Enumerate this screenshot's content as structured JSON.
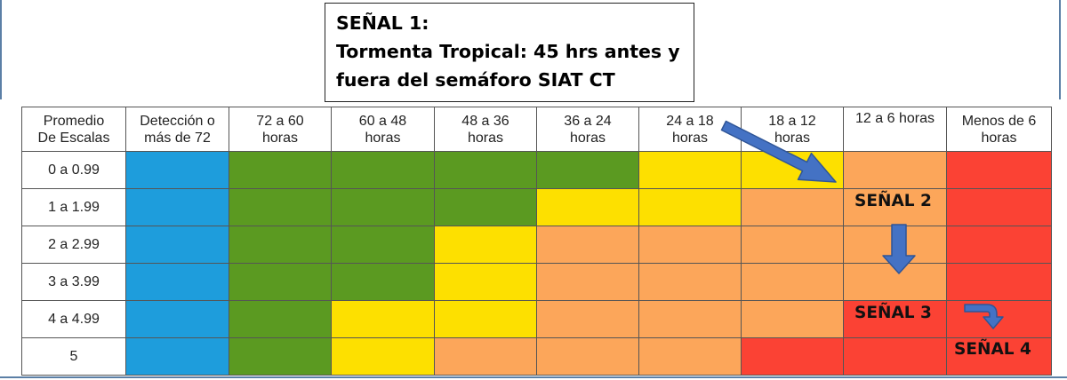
{
  "title": {
    "lines": [
      "SEÑAL 1:",
      "Tormenta Tropical: 45 hrs antes y",
      "fuera del semáforo SIAT CT"
    ]
  },
  "table": {
    "corner_header": [
      "Promedio",
      "De Escalas"
    ],
    "column_headers": [
      [
        "Detección o",
        "más de 72"
      ],
      [
        "72 a 60",
        "horas"
      ],
      [
        "60 a 48",
        "horas"
      ],
      [
        "48 a 36",
        "horas"
      ],
      [
        "36 a 24",
        "horas"
      ],
      [
        "24 a 18",
        "horas"
      ],
      [
        "18 a 12",
        "horas"
      ],
      [
        "12 a 6 horas",
        ""
      ],
      [
        "Menos de 6",
        "horas"
      ]
    ],
    "row_labels": [
      "0 a 0.99",
      "1 a 1.99",
      "2 a 2.99",
      "3 a 3.99",
      "4 a 4.99",
      "5"
    ],
    "level_colors": {
      "blue": "#1e9ddc",
      "green": "#5b9a21",
      "yellow": "#fde000",
      "lightorange": "#fca65a",
      "orange": "#fca65a",
      "red": "#fb4234"
    },
    "cells": [
      [
        "blue",
        "green",
        "green",
        "green",
        "green",
        "yellow",
        "yellow",
        "orange",
        "red"
      ],
      [
        "blue",
        "green",
        "green",
        "green",
        "yellow",
        "yellow",
        "lightorange",
        "orange",
        "red"
      ],
      [
        "blue",
        "green",
        "green",
        "yellow",
        "lightorange",
        "lightorange",
        "lightorange",
        "orange",
        "red"
      ],
      [
        "blue",
        "green",
        "green",
        "yellow",
        "lightorange",
        "lightorange",
        "lightorange",
        "orange",
        "red"
      ],
      [
        "blue",
        "green",
        "yellow",
        "yellow",
        "lightorange",
        "lightorange",
        "lightorange",
        "red",
        "red"
      ],
      [
        "blue",
        "green",
        "yellow",
        "lightorange",
        "lightorange",
        "lightorange",
        "red",
        "red",
        "red"
      ]
    ]
  },
  "signals": {
    "s2": "SEÑAL 2",
    "s3": "SEÑAL 3",
    "s4": "SEÑAL 4"
  },
  "arrow_color": "#4472c4"
}
